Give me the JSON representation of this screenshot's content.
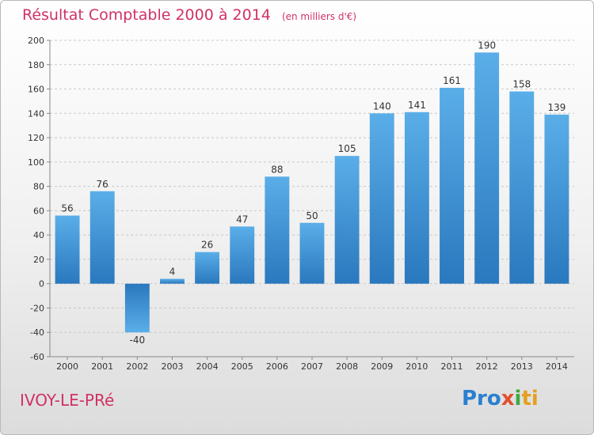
{
  "header": {
    "title": "Résultat Comptable 2000 à 2014",
    "subtitle": "(en milliers d'€)"
  },
  "footer": {
    "commune": "IVOY-LE-PRé",
    "logo_text": "Proxiti"
  },
  "colors": {
    "title": "#d03264",
    "bar_light": "#5aaee8",
    "bar_dark": "#2a78be",
    "grid": "#c8c8c8"
  },
  "chart_data": {
    "type": "bar",
    "categories": [
      "2000",
      "2001",
      "2002",
      "2003",
      "2004",
      "2005",
      "2006",
      "2007",
      "2008",
      "2009",
      "2010",
      "2011",
      "2012",
      "2013",
      "2014"
    ],
    "values": [
      56,
      76,
      -40,
      4,
      26,
      47,
      88,
      50,
      105,
      140,
      141,
      161,
      190,
      158,
      139
    ],
    "ylim": [
      -60,
      200
    ],
    "yticks": [
      -60,
      -40,
      -20,
      0,
      20,
      40,
      60,
      80,
      100,
      120,
      140,
      160,
      180,
      200
    ],
    "grid": "horizontal dashed",
    "legend": "none"
  }
}
